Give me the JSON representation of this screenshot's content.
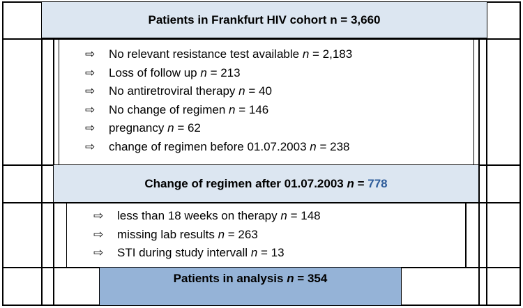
{
  "colors": {
    "light_box": "#dce6f1",
    "analysis_box": "#95b3d7",
    "accent_number": "#2e5c9a",
    "border": "#000000"
  },
  "arrow_glyph": "⇨",
  "cohort": {
    "label": "Patients in Frankfurt HIV cohort n = 3,660"
  },
  "exclusions_1": [
    {
      "text": "No relevant resistance test available",
      "n_label": "n",
      "value": " = 2,183"
    },
    {
      "text": "Loss of follow up",
      "n_label": "n",
      "value": " = 213"
    },
    {
      "text": "No antiretroviral therapy",
      "n_label": "n",
      "value": " = 40"
    },
    {
      "text": "No change of regimen",
      "n_label": "n",
      "value": " = 146"
    },
    {
      "text": "pregnancy",
      "n_label": "n",
      "value": " = 62"
    },
    {
      "text": "change of regimen before 01.07.2003",
      "n_label": "n",
      "value": " = 238"
    }
  ],
  "regimen_change": {
    "text": "Change of regimen after 01.07.2003",
    "n_label": "n",
    "eq": " = ",
    "value": "778"
  },
  "exclusions_2": [
    {
      "text": "less than 18 weeks on therapy",
      "n_label": "n",
      "value": " = 148"
    },
    {
      "text": "missing lab results",
      "n_label": "n",
      "value": " = 263"
    },
    {
      "text": "STI during study intervall",
      "n_label": "n",
      "value": " = 13"
    }
  ],
  "analysis": {
    "text": "Patients in analysis",
    "n_label": "n",
    "value": " = 354"
  }
}
